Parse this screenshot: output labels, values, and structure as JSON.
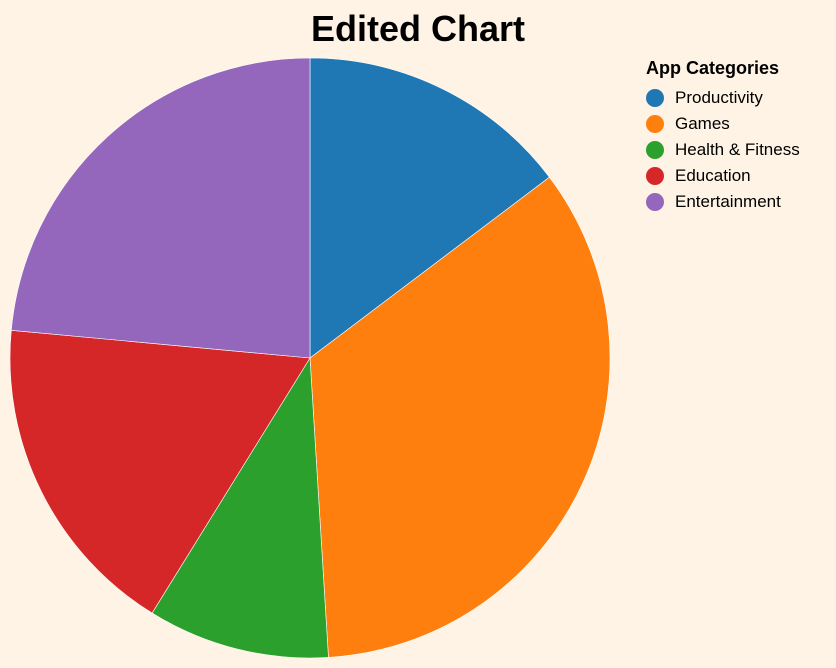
{
  "chart_data": {
    "type": "pie",
    "title": "Edited Chart",
    "legend_title": "App Categories",
    "legend_position": "top-right",
    "categories": [
      "Productivity",
      "Games",
      "Health & Fitness",
      "Education",
      "Entertainment"
    ],
    "values": [
      15,
      35,
      10,
      18,
      24
    ],
    "colors": [
      "#1f77b4",
      "#ff7f0e",
      "#2ca02c",
      "#d62728",
      "#9467bd"
    ]
  }
}
